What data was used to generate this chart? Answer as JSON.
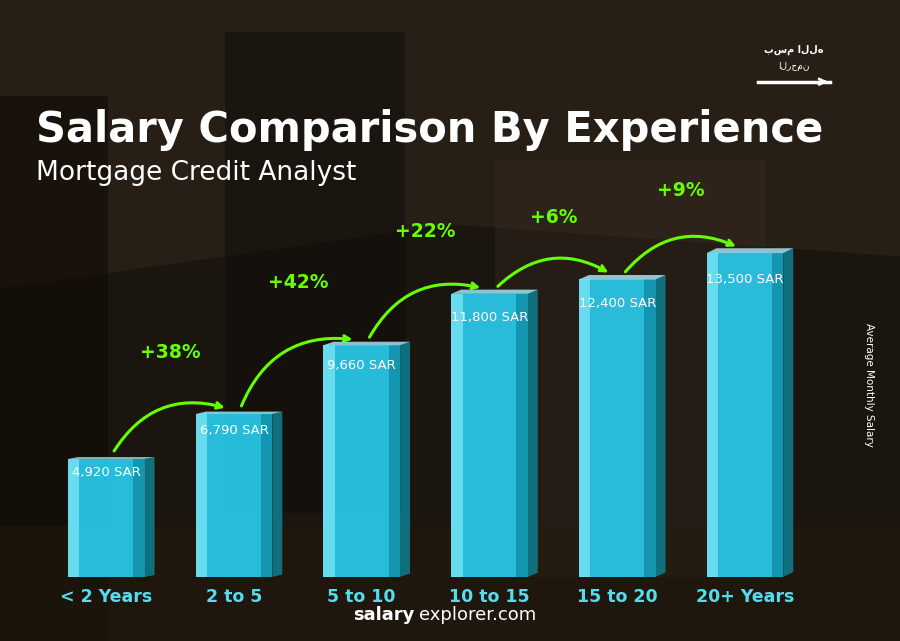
{
  "title": "Salary Comparison By Experience",
  "subtitle": "Mortgage Credit Analyst",
  "categories": [
    "< 2 Years",
    "2 to 5",
    "5 to 10",
    "10 to 15",
    "15 to 20",
    "20+ Years"
  ],
  "values": [
    4920,
    6790,
    9660,
    11800,
    12400,
    13500
  ],
  "value_labels": [
    "4,920 SAR",
    "6,790 SAR",
    "9,660 SAR",
    "11,800 SAR",
    "12,400 SAR",
    "13,500 SAR"
  ],
  "pct_labels": [
    "+38%",
    "+42%",
    "+22%",
    "+6%",
    "+9%"
  ],
  "bar_face_color": "#29c5e6",
  "bar_left_color": "#7de8f7",
  "bar_right_color": "#1190aa",
  "bar_top_color": "#aaf0ff",
  "bg_colors": [
    "#4a3f35",
    "#2a2520",
    "#1a1510",
    "#3a3028",
    "#2a2018"
  ],
  "title_color": "#ffffff",
  "subtitle_color": "#ffffff",
  "value_color": "#ffffff",
  "pct_color": "#66ff00",
  "xtick_color": "#55ddee",
  "ylabel_text": "Average Monthly Salary",
  "footer_left": "salary",
  "footer_right": "explorer.com",
  "footer_color_left": "#ffffff",
  "footer_color_right": "#ffffff",
  "ylim_max": 15500,
  "title_fontsize": 30,
  "subtitle_fontsize": 19,
  "bar_width": 0.6,
  "flag_color": "#4caf00"
}
